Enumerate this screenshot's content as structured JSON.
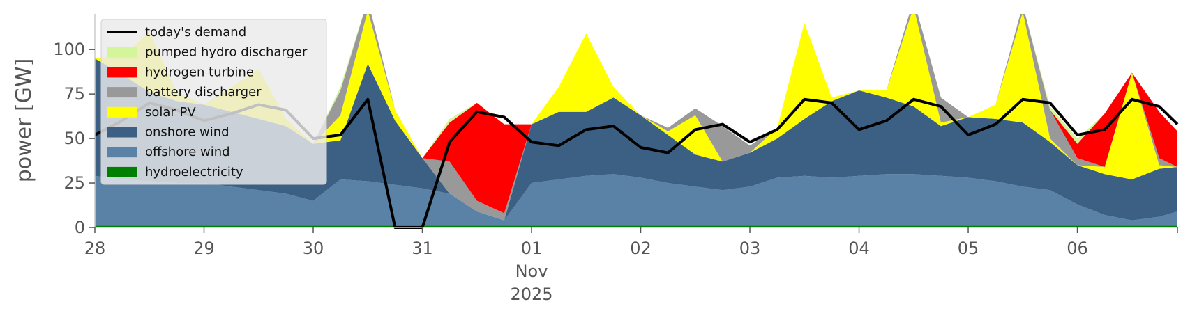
{
  "chart_data": {
    "type": "area",
    "ylabel": "power [GW]",
    "ylim": [
      0,
      120
    ],
    "y_ticks": [
      0,
      25,
      50,
      75,
      100
    ],
    "xlim": [
      "2025-10-28T00:00",
      "2025-11-06T22:00"
    ],
    "x_ticks": [
      {
        "at": "2025-10-28",
        "label": "28"
      },
      {
        "at": "2025-10-29",
        "label": "29"
      },
      {
        "at": "2025-10-30",
        "label": "30"
      },
      {
        "at": "2025-10-31",
        "label": "31"
      },
      {
        "at": "2025-11-01",
        "label": "01",
        "label2": "Nov",
        "label3": "2025"
      },
      {
        "at": "2025-11-02",
        "label": "02"
      },
      {
        "at": "2025-11-03",
        "label": "03"
      },
      {
        "at": "2025-11-04",
        "label": "04"
      },
      {
        "at": "2025-11-05",
        "label": "05"
      },
      {
        "at": "2025-11-06",
        "label": "06"
      }
    ],
    "grid": false,
    "legend_position": "top-left",
    "legend": [
      {
        "name": "today's demand",
        "color": "#000000",
        "kind": "line"
      },
      {
        "name": "pumped hydro discharger",
        "color": "#d4f59a",
        "kind": "patch"
      },
      {
        "name": "hydrogen turbine",
        "color": "#ff0000",
        "kind": "patch"
      },
      {
        "name": "battery discharger",
        "color": "#999999",
        "kind": "patch"
      },
      {
        "name": "solar PV",
        "color": "#ffff00",
        "kind": "patch"
      },
      {
        "name": "onshore wind",
        "color": "#3c6083",
        "kind": "patch"
      },
      {
        "name": "offshore wind",
        "color": "#5a82a6",
        "kind": "patch"
      },
      {
        "name": "hydroelectricity",
        "color": "#008000",
        "kind": "patch"
      }
    ],
    "stack_order": [
      "hydroelectricity",
      "offshore wind",
      "onshore wind",
      "solar PV",
      "battery discharger",
      "hydrogen turbine",
      "pumped hydro discharger"
    ],
    "x": [
      "2025-10-28T00:00",
      "2025-10-28T06:00",
      "2025-10-28T12:00",
      "2025-10-28T18:00",
      "2025-10-29T00:00",
      "2025-10-29T06:00",
      "2025-10-29T12:00",
      "2025-10-29T18:00",
      "2025-10-30T00:00",
      "2025-10-30T06:00",
      "2025-10-30T12:00",
      "2025-10-30T18:00",
      "2025-10-31T00:00",
      "2025-10-31T06:00",
      "2025-10-31T12:00",
      "2025-10-31T18:00",
      "2025-11-01T00:00",
      "2025-11-01T06:00",
      "2025-11-01T12:00",
      "2025-11-01T18:00",
      "2025-11-02T00:00",
      "2025-11-02T06:00",
      "2025-11-02T12:00",
      "2025-11-02T18:00",
      "2025-11-03T00:00",
      "2025-11-03T06:00",
      "2025-11-03T12:00",
      "2025-11-03T18:00",
      "2025-11-04T00:00",
      "2025-11-04T06:00",
      "2025-11-04T12:00",
      "2025-11-04T18:00",
      "2025-11-05T00:00",
      "2025-11-05T06:00",
      "2025-11-05T12:00",
      "2025-11-05T18:00",
      "2025-11-06T00:00",
      "2025-11-06T06:00",
      "2025-11-06T12:00",
      "2025-11-06T18:00",
      "2025-11-06T22:00"
    ],
    "series": [
      {
        "name": "hydroelectricity",
        "values": [
          1,
          1,
          1,
          1,
          1,
          1,
          1,
          1,
          1,
          1,
          1,
          1,
          1,
          1,
          1,
          1,
          1,
          1,
          1,
          1,
          1,
          1,
          1,
          1,
          1,
          1,
          1,
          1,
          1,
          1,
          1,
          1,
          1,
          1,
          1,
          1,
          1,
          1,
          1,
          1,
          1
        ]
      },
      {
        "name": "offshore wind",
        "values": [
          28,
          26,
          25,
          24,
          24,
          22,
          20,
          18,
          14,
          26,
          25,
          23,
          21,
          18,
          8,
          3,
          24,
          26,
          28,
          29,
          27,
          24,
          22,
          20,
          22,
          27,
          28,
          27,
          28,
          29,
          29,
          28,
          27,
          25,
          22,
          20,
          12,
          6,
          3,
          5,
          8
        ]
      },
      {
        "name": "onshore wind",
        "values": [
          66,
          59,
          50,
          46,
          44,
          42,
          40,
          38,
          32,
          22,
          66,
          36,
          17,
          0,
          0,
          0,
          33,
          38,
          36,
          43,
          35,
          27,
          18,
          16,
          19,
          22,
          32,
          43,
          48,
          43,
          38,
          28,
          34,
          35,
          36,
          27,
          22,
          23,
          23,
          27,
          25
        ]
      },
      {
        "name": "solar PV",
        "values": [
          0,
          10,
          34,
          5,
          0,
          14,
          28,
          4,
          0,
          14,
          30,
          6,
          0,
          0,
          0,
          0,
          0,
          14,
          44,
          6,
          0,
          2,
          22,
          0,
          0,
          6,
          54,
          2,
          0,
          4,
          56,
          2,
          0,
          8,
          62,
          2,
          0,
          4,
          60,
          2,
          0
        ]
      },
      {
        "name": "battery discharger",
        "values": [
          0,
          0,
          0,
          0,
          0,
          0,
          0,
          0,
          0,
          14,
          6,
          0,
          0,
          18,
          6,
          4,
          0,
          0,
          0,
          0,
          0,
          2,
          4,
          20,
          4,
          0,
          0,
          0,
          0,
          0,
          4,
          14,
          0,
          0,
          4,
          16,
          4,
          0,
          0,
          4,
          0
        ]
      },
      {
        "name": "hydrogen turbine",
        "values": [
          0,
          0,
          0,
          0,
          0,
          0,
          0,
          0,
          0,
          0,
          0,
          0,
          0,
          22,
          55,
          50,
          0,
          0,
          0,
          0,
          0,
          0,
          0,
          0,
          0,
          0,
          0,
          0,
          0,
          0,
          0,
          0,
          0,
          0,
          0,
          0,
          8,
          30,
          0,
          26,
          20
        ]
      },
      {
        "name": "pumped hydro discharger",
        "values": [
          0,
          0,
          0,
          0,
          0,
          0,
          0,
          0,
          0,
          2,
          0,
          0,
          0,
          2,
          0,
          0,
          0,
          0,
          0,
          0,
          0,
          0,
          0,
          0,
          0,
          0,
          0,
          0,
          0,
          0,
          0,
          0,
          0,
          0,
          0,
          2,
          3,
          0,
          0,
          0,
          0
        ]
      },
      {
        "name": "today's demand",
        "values": [
          52,
          60,
          70,
          66,
          60,
          64,
          69,
          66,
          50,
          52,
          72,
          0,
          0,
          48,
          65,
          62,
          48,
          46,
          55,
          57,
          45,
          42,
          55,
          58,
          48,
          55,
          72,
          70,
          55,
          60,
          72,
          68,
          52,
          58,
          72,
          70,
          52,
          55,
          72,
          68,
          58
        ]
      }
    ]
  }
}
